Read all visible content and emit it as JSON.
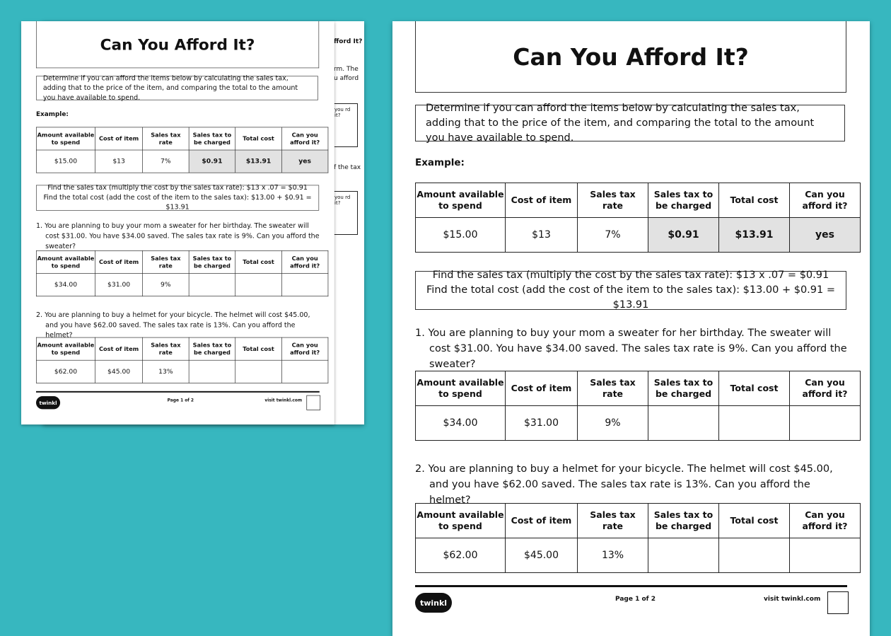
{
  "worksheet": {
    "title": "Can You Afford It?",
    "instructions": "Determine if you can afford the items below by calculating the sales tax, adding that to the price of the item, and comparing the total to the amount you have available to spend.",
    "example_label": "Example:",
    "headers": [
      "Amount available to spend",
      "Cost of item",
      "Sales tax rate",
      "Sales tax to be charged",
      "Total cost",
      "Can you afford it?"
    ],
    "example_row": [
      "$15.00",
      "$13",
      "7%",
      "$0.91",
      "$13.91",
      "yes"
    ],
    "formula_line1": "Find the sales tax (multiply the cost by the sales tax rate): $13 x .07 = $0.91",
    "formula_line2": "Find the total cost (add the cost of the item to the sales tax): $13.00 + $0.91 = $13.91",
    "questions": [
      {
        "text": "1.  You are planning to buy your mom a sweater for her birthday. The sweater will cost $31.00. You have $34.00 saved. The sales tax rate is 9%. Can you afford the sweater?",
        "row": [
          "$34.00",
          "$31.00",
          "9%",
          "",
          "",
          ""
        ]
      },
      {
        "text": "2.  You are planning to buy a helmet for your bicycle. The helmet will cost $45.00, and you have $62.00 saved. The sales tax rate is 13%. Can you afford the helmet?",
        "row": [
          "$62.00",
          "$45.00",
          "13%",
          "",
          "",
          ""
        ]
      }
    ],
    "footer": {
      "logo": "twinkl",
      "page": "Page 1 of 2",
      "site": "visit twinkl.com"
    }
  },
  "back_page_fragments": [
    "fford It?",
    "rm. The",
    "u afford",
    "you rd it?",
    "f the tax",
    "you rd it?"
  ]
}
